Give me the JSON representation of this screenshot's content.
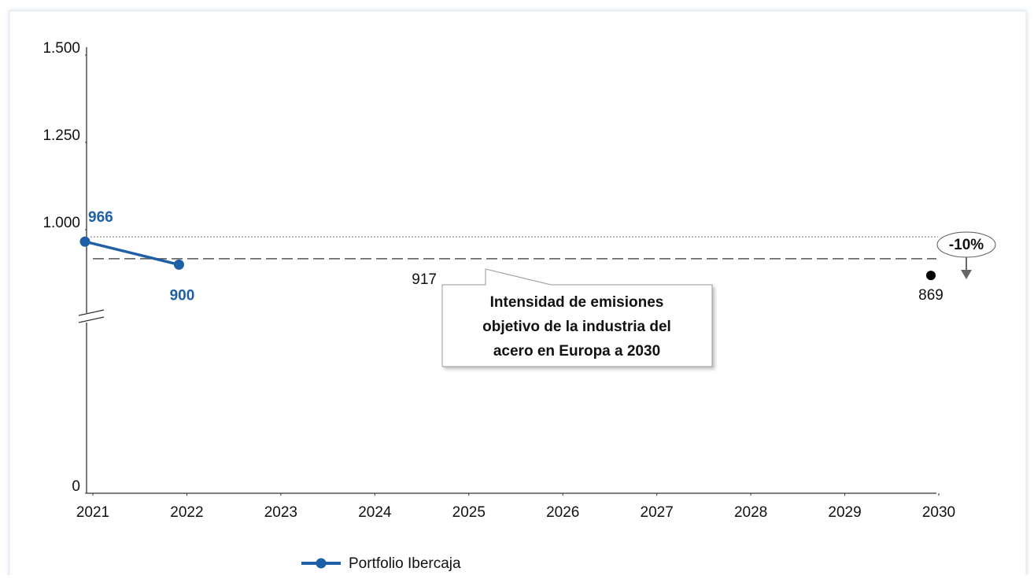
{
  "chart_data": {
    "type": "line",
    "x": [
      2021,
      2022,
      2023,
      2024,
      2025,
      2026,
      2027,
      2028,
      2029,
      2030
    ],
    "xlim": [
      2021,
      2030
    ],
    "xticks": [
      2021,
      2022,
      2023,
      2024,
      2025,
      2026,
      2027,
      2028,
      2029,
      2030
    ],
    "ylim": [
      0,
      1500
    ],
    "yticks": [
      0,
      {
        "value": 1000,
        "label": "1.000"
      },
      {
        "value": 1250,
        "label": "1.250"
      },
      {
        "value": 1500,
        "label": "1.500"
      }
    ],
    "series": [
      {
        "name": "Portfolio Ibercaja",
        "color": "#1f5fa6",
        "values": [
          966,
          900,
          null,
          null,
          null,
          null,
          null,
          null,
          null,
          null
        ]
      }
    ],
    "target_line": 917,
    "target_point": 869,
    "reduction_label": "-10%",
    "callout": [
      "Intensidad de emisiones",
      "objetivo de la industria del",
      "acero en Europa a 2030"
    ],
    "legend": "bottom"
  }
}
